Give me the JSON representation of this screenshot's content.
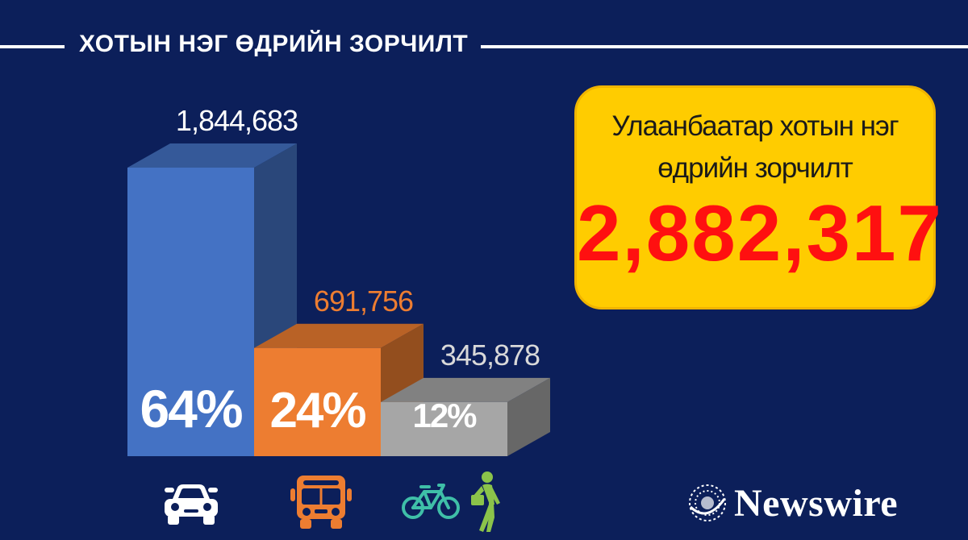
{
  "header": {
    "title": "ХОТЫН НЭГ ӨДРИЙН ЗОРЧИЛТ"
  },
  "total_box": {
    "caption_line1": "Улаанбаатар хотын нэг",
    "caption_line2": "өдрийн зорчилт",
    "value": "2,882,317"
  },
  "brand": {
    "name": "Newswire",
    "logo_icon": "globe-icon"
  },
  "icons": [
    "car-icon",
    "bus-icon",
    "bicycle-icon",
    "pedestrian-icon"
  ],
  "colors": {
    "background": "#0c1f5a",
    "car": "#4472c4",
    "bus": "#ed7d31",
    "other": "#a6a6a6",
    "highlight_box": "#ffcc00",
    "highlight_value": "#ff1010"
  },
  "chart_data": {
    "type": "bar",
    "title": "ХОТЫН НЭГ ӨДРИЙН ЗОРЧИЛТ",
    "categories": [
      "car",
      "bus",
      "bicycle-walk"
    ],
    "values": [
      1844683,
      691756,
      345878
    ],
    "value_labels": [
      "1,844,683",
      "691,756",
      "345,878"
    ],
    "percent_labels": [
      "64%",
      "24%",
      "12%"
    ],
    "bar_colors": [
      "#4472c4",
      "#ed7d31",
      "#a6a6a6"
    ],
    "value_label_colors": [
      "#ffffff",
      "#ed7d31",
      "#d9d9d9"
    ],
    "ylim": [
      0,
      1844683
    ],
    "style": "3d",
    "grid": false
  }
}
